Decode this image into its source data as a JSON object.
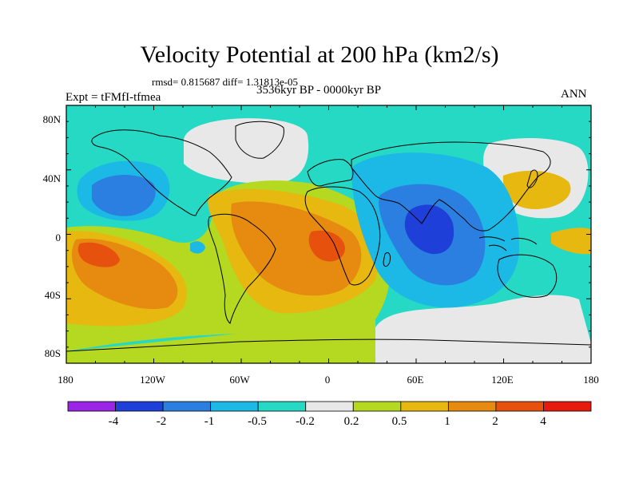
{
  "title": "Velocity Potential at 200 hPa (km2/s)",
  "subtitle_stats": "rmsd= 0.815687 diff= 1.31813e-05",
  "subtitle_period": "3536kyr BP - 0000kyr BP",
  "experiment_label": "Expt = tFMfI-tfmea",
  "season_label": "ANN",
  "lat_labels": [
    "80N",
    "40N",
    "0",
    "40S",
    "80S"
  ],
  "lon_labels": [
    "180",
    "120W",
    "60W",
    "0",
    "60E",
    "120E",
    "180"
  ],
  "colorbar": {
    "boundaries": [
      "-4",
      "-2",
      "-1",
      "-0.5",
      "-0.2",
      "0.2",
      "0.5",
      "1",
      "2",
      "4"
    ],
    "colors": [
      "#9a25e6",
      "#1f3fd9",
      "#2b7fe0",
      "#1cb8e6",
      "#25d9c4",
      "#e8e8e8",
      "#b5d820",
      "#e6b810",
      "#e68a10",
      "#e6520d",
      "#e61a0d"
    ]
  },
  "map_colors": {
    "background": "#25d9c4",
    "coast": "#000000",
    "frame": "#000000"
  }
}
